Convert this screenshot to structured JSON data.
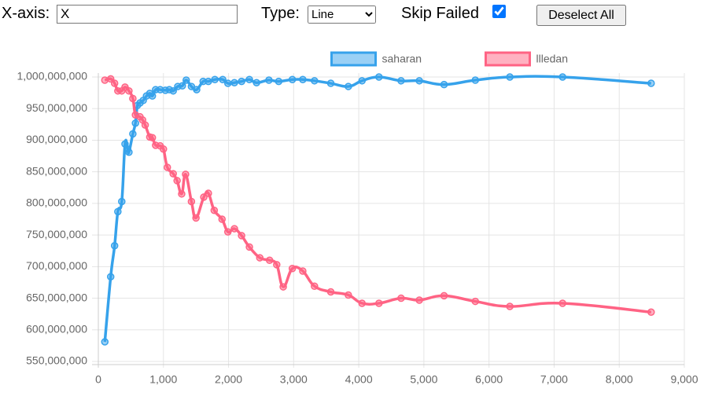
{
  "controls": {
    "x_axis_label": "X-axis:",
    "x_axis_value": "X",
    "type_label": "Type:",
    "type_value": "Line",
    "skip_failed_label": "Skip Failed",
    "skip_failed_checked": true,
    "button": "Deselect All"
  },
  "chart_data": {
    "type": "line",
    "legend": "top",
    "grid": true,
    "xlim": [
      0,
      9000
    ],
    "xticks": [
      0,
      {
        "value": 1000,
        "label": "1,000"
      },
      {
        "value": 2000,
        "label": "2,000"
      },
      {
        "value": 3000,
        "label": "3,000"
      },
      {
        "value": 4000,
        "label": "4,000"
      },
      {
        "value": 5000,
        "label": "5,000"
      },
      {
        "value": 6000,
        "label": "6,000"
      },
      {
        "value": 7000,
        "label": "7,000"
      },
      {
        "value": 8000,
        "label": "8,000"
      },
      {
        "value": 9000,
        "label": "9,000"
      }
    ],
    "ylim": [
      550000000,
      1000000000
    ],
    "yticks": [
      {
        "value": 550000000,
        "label": "550,000,000"
      },
      {
        "value": 600000000,
        "label": "600,000,000"
      },
      {
        "value": 650000000,
        "label": "650,000,000"
      },
      {
        "value": 700000000,
        "label": "700,000,000"
      },
      {
        "value": 750000000,
        "label": "750,000,000"
      },
      {
        "value": 800000000,
        "label": "800,000,000"
      },
      {
        "value": 850000000,
        "label": "850,000,000"
      },
      {
        "value": 900000000,
        "label": "900,000,000"
      },
      {
        "value": 950000000,
        "label": "950,000,000"
      },
      {
        "value": 1000000000,
        "label": "1,000,000,000"
      }
    ],
    "series": [
      {
        "name": "saharan",
        "color": "#36a2eb",
        "x": [
          100,
          190,
          250,
          300,
          360,
          410,
          450,
          470,
          530,
          570,
          600,
          640,
          690,
          740,
          790,
          830,
          880,
          950,
          1030,
          1090,
          1150,
          1220,
          1290,
          1350,
          1430,
          1510,
          1610,
          1690,
          1790,
          1910,
          1990,
          2090,
          2200,
          2320,
          2430,
          2620,
          2770,
          2980,
          3140,
          3320,
          3570,
          3840,
          4050,
          4310,
          4650,
          4930,
          5310,
          5790,
          6320,
          7130,
          8490
        ],
        "values": [
          581000000,
          684000000,
          733000000,
          787000000,
          803000000,
          894000000,
          886000000,
          881000000,
          910000000,
          927000000,
          955000000,
          959000000,
          963000000,
          970000000,
          974000000,
          970000000,
          980000000,
          980000000,
          979000000,
          980000000,
          978000000,
          985000000,
          986000000,
          995000000,
          985000000,
          980000000,
          993000000,
          993000000,
          996000000,
          996000000,
          990000000,
          991000000,
          993000000,
          996000000,
          991000000,
          995000000,
          993000000,
          996000000,
          996000000,
          994000000,
          990000000,
          985000000,
          994000000,
          1000000000,
          994000000,
          994000000,
          988000000,
          995000000,
          1000000000,
          1000000000,
          990000000
        ]
      },
      {
        "name": "llledan",
        "color": "#ff6384",
        "x": [
          100,
          190,
          250,
          300,
          360,
          410,
          470,
          530,
          570,
          640,
          680,
          720,
          790,
          830,
          880,
          950,
          1000,
          1060,
          1150,
          1210,
          1280,
          1340,
          1430,
          1500,
          1620,
          1690,
          1780,
          1900,
          1990,
          2090,
          2200,
          2320,
          2480,
          2630,
          2740,
          2840,
          2980,
          3140,
          3320,
          3570,
          3840,
          4050,
          4310,
          4650,
          4930,
          5310,
          5790,
          6320,
          7130,
          8490
        ],
        "values": [
          995000000,
          997000000,
          990000000,
          978000000,
          978000000,
          984000000,
          978000000,
          966000000,
          940000000,
          937000000,
          932000000,
          924000000,
          905000000,
          904000000,
          892000000,
          891000000,
          886000000,
          857000000,
          847000000,
          836000000,
          815000000,
          846000000,
          803000000,
          777000000,
          810000000,
          816000000,
          789000000,
          775000000,
          755000000,
          760000000,
          749000000,
          731000000,
          714000000,
          710000000,
          703000000,
          668000000,
          697000000,
          693000000,
          669000000,
          660000000,
          655000000,
          642000000,
          642000000,
          650000000,
          647000000,
          654000000,
          645000000,
          637000000,
          642000000,
          628000000
        ]
      }
    ]
  }
}
